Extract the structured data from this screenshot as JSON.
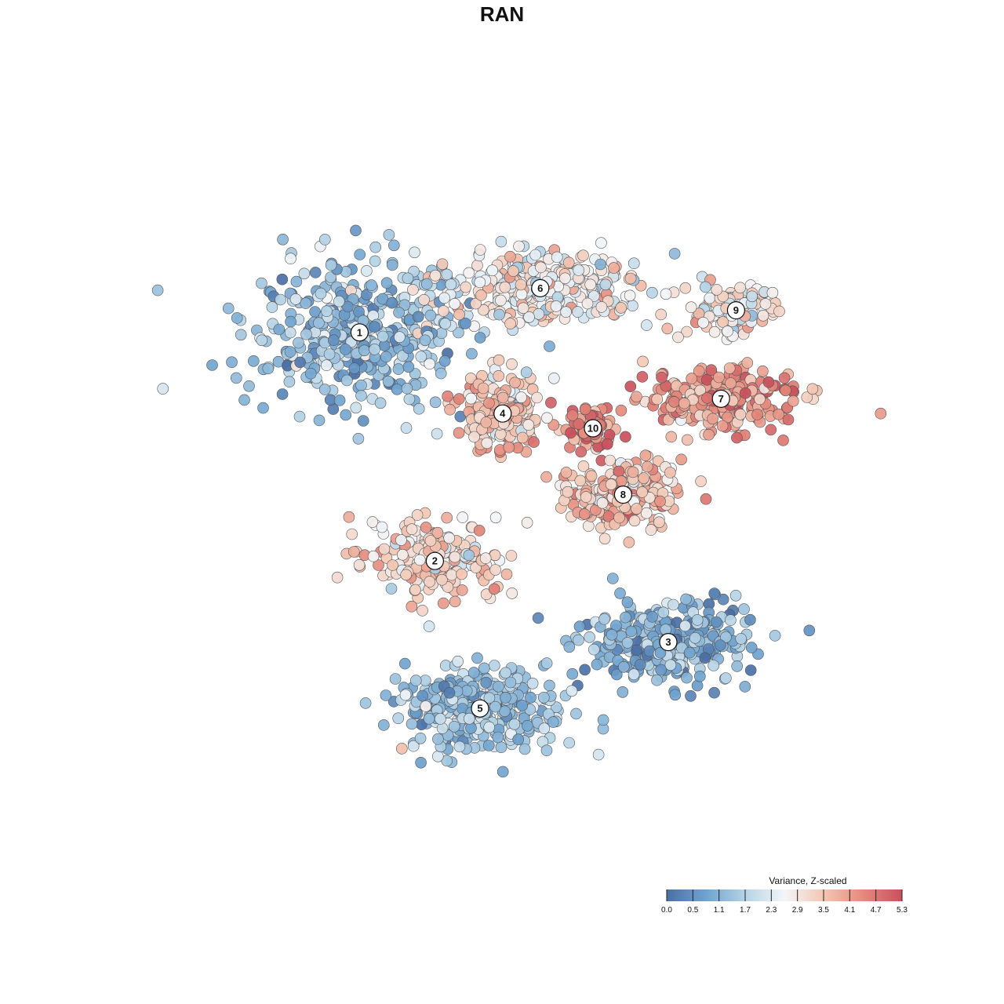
{
  "chart_data": {
    "type": "scatter",
    "title": "RAN",
    "xlabel": "",
    "ylabel": "",
    "grid": false,
    "axes_visible": false,
    "legend": {
      "title": "Variance, Z-scaled",
      "placement": "bottom-right",
      "ticks": [
        "0.0",
        "0.5",
        "1.1",
        "1.7",
        "2.3",
        "2.9",
        "3.5",
        "4.1",
        "4.7",
        "5.3"
      ],
      "range": [
        0.0,
        5.3
      ],
      "colors": [
        "#4a6fa5",
        "#6fa3cf",
        "#b5d3e6",
        "#f3f6f9",
        "#f3c7b3",
        "#e58a7c",
        "#c9505c"
      ]
    },
    "clusters": [
      {
        "label": "1",
        "x": 0.29,
        "y": 0.73,
        "mean": 1.35,
        "spread_x": 0.14,
        "spread_y": 0.09
      },
      {
        "label": "2",
        "x": 0.39,
        "y": 0.42,
        "mean": 3.3,
        "spread_x": 0.09,
        "spread_y": 0.05
      },
      {
        "label": "3",
        "x": 0.7,
        "y": 0.31,
        "mean": 1.1,
        "spread_x": 0.1,
        "spread_y": 0.05
      },
      {
        "label": "4",
        "x": 0.48,
        "y": 0.62,
        "mean": 3.5,
        "spread_x": 0.05,
        "spread_y": 0.05
      },
      {
        "label": "5",
        "x": 0.45,
        "y": 0.22,
        "mean": 1.5,
        "spread_x": 0.09,
        "spread_y": 0.05
      },
      {
        "label": "6",
        "x": 0.53,
        "y": 0.79,
        "mean": 2.8,
        "spread_x": 0.13,
        "spread_y": 0.04
      },
      {
        "label": "7",
        "x": 0.77,
        "y": 0.64,
        "mean": 4.2,
        "spread_x": 0.09,
        "spread_y": 0.04
      },
      {
        "label": "8",
        "x": 0.64,
        "y": 0.51,
        "mean": 3.6,
        "spread_x": 0.07,
        "spread_y": 0.04
      },
      {
        "label": "9",
        "x": 0.79,
        "y": 0.76,
        "mean": 2.9,
        "spread_x": 0.05,
        "spread_y": 0.03
      },
      {
        "label": "10",
        "x": 0.6,
        "y": 0.6,
        "mean": 4.5,
        "spread_x": 0.03,
        "spread_y": 0.03
      }
    ]
  }
}
